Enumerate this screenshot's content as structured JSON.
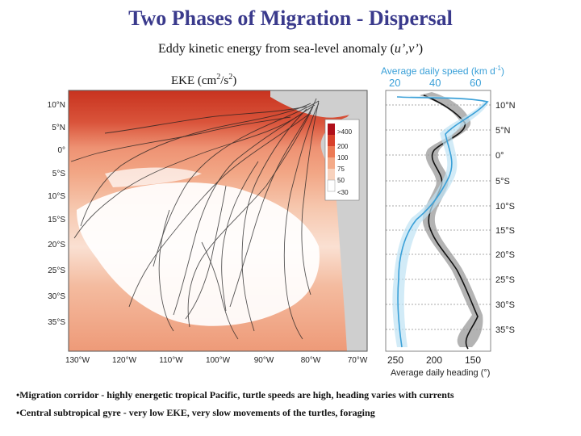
{
  "title": "Two Phases of Migration - Dispersal",
  "subtitle_prefix": "Eddy kinetic energy from sea-level anomaly (",
  "subtitle_italic": "u’,v’",
  "subtitle_suffix": ")",
  "eke_prefix": "EKE (cm",
  "eke_sup1": "2",
  "eke_mid": "/s",
  "eke_sup2": "2",
  "eke_suffix": ")",
  "map": {
    "lat_labels": [
      "10°N",
      "5°N",
      "0°",
      "5°S",
      "10°S",
      "15°S",
      "20°S",
      "25°S",
      "30°S",
      "35°S"
    ],
    "lon_labels": [
      "130°W",
      "120°W",
      "110°W",
      "100°W",
      "90°W",
      "80°W",
      "70°W"
    ],
    "legend": [
      ">400",
      "200",
      "100",
      "75",
      "50",
      "<30"
    ],
    "legend_colors": [
      "#b0101a",
      "#d8402a",
      "#ec7a55",
      "#f4aa88",
      "#f8d2bd",
      "#ffffff"
    ]
  },
  "right_panel": {
    "top_axis_title": "Average daily speed (km d",
    "top_axis_sup": "-1",
    "top_axis_close": ")",
    "top_ticks": [
      "20",
      "40",
      "60"
    ],
    "bottom_ticks": [
      "250",
      "200",
      "150"
    ],
    "bottom_axis_title": "Average daily heading (°)",
    "lat_labels": [
      "10°N",
      "5°N",
      "0°",
      "5°S",
      "10°S",
      "15°S",
      "20°S",
      "25°S",
      "30°S",
      "35°S"
    ],
    "speed_color": "#3aa0d8"
  },
  "bullets": [
    "•Migration corridor - highly energetic tropical Pacific, turtle speeds are high, heading varies with currents",
    "•Central subtropical gyre - very low EKE, very slow movements of the turtles, foraging"
  ]
}
